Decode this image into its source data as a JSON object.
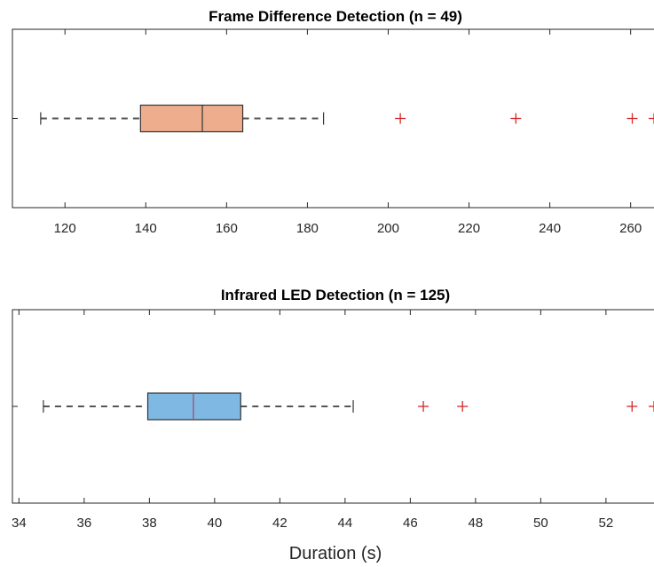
{
  "chart_data": [
    {
      "type": "boxplot",
      "title": "Frame Difference Detection (n = 49)",
      "xlabel": "",
      "ylabel": "",
      "xlim": [
        107,
        266
      ],
      "xticks": [
        120,
        140,
        160,
        180,
        200,
        220,
        240,
        260
      ],
      "xtick_labels": [
        "120",
        "140",
        "160",
        "180",
        "200",
        "220",
        "240",
        "260"
      ],
      "box": {
        "whisker_low": 114,
        "q1": 138.7,
        "median": 154,
        "q3": 164,
        "whisker_high": 184
      },
      "outliers": [
        203,
        231.6,
        260.4,
        266
      ],
      "box_color": "#eeae8e",
      "median_color": "#333333",
      "outlier_color": "#d62728"
    },
    {
      "type": "boxplot",
      "title": "Infrared LED Detection (n = 125)",
      "xlabel": "Duration (s)",
      "ylabel": "",
      "xlim": [
        33.8,
        53.5
      ],
      "xticks": [
        34,
        36,
        38,
        40,
        42,
        44,
        46,
        48,
        50,
        52
      ],
      "xtick_labels": [
        "34",
        "36",
        "38",
        "40",
        "42",
        "44",
        "46",
        "48",
        "50",
        "52"
      ],
      "box": {
        "whisker_low": 34.75,
        "q1": 37.95,
        "median": 39.35,
        "q3": 40.8,
        "whisker_high": 44.25
      },
      "outliers": [
        46.4,
        47.6,
        52.8,
        53.5
      ],
      "box_color": "#7fb8e2",
      "median_color": "#9c4a6a",
      "outlier_color": "#d62728"
    }
  ]
}
